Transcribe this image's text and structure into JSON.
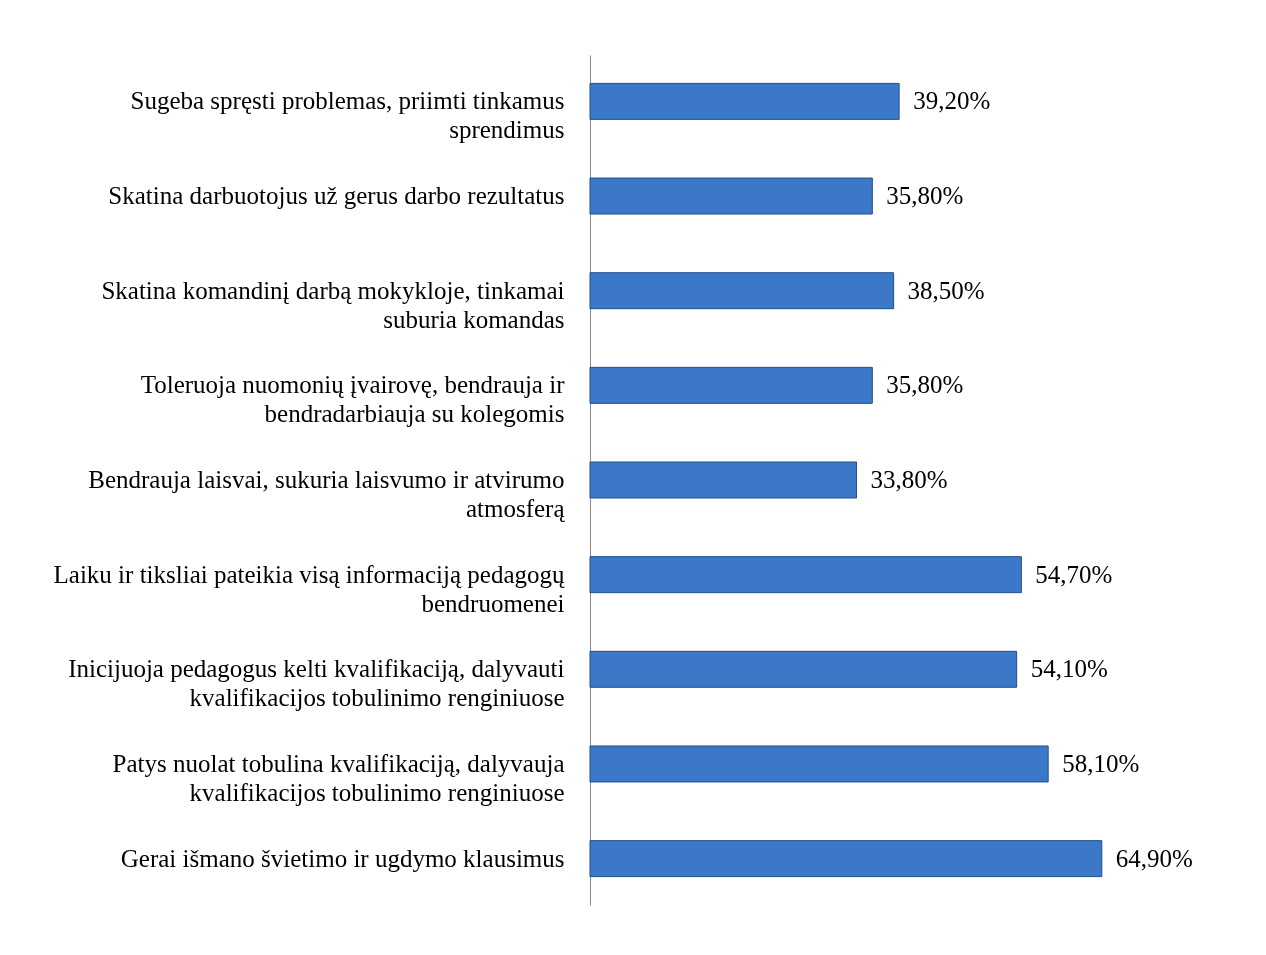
{
  "chart_data": {
    "type": "bar",
    "orientation": "horizontal",
    "categories": [
      "Sugeba spręsti problemas, priimti tinkamus sprendimus",
      "Skatina darbuotojus už gerus darbo rezultatus",
      "Skatina komandinį darbą mokykloje, tinkamai suburia komandas",
      "Toleruoja nuomonių įvairovę, bendrauja ir bendradarbiauja su kolegomis",
      "Bendrauja laisvai, sukuria laisvumo ir atvirumo atmosferą",
      "Laiku ir tiksliai pateikia visą informaciją pedagogų bendruomenei",
      "Inicijuoja pedagogus kelti kvalifikaciją, dalyvauti kvalifikacijos tobulinimo renginiuose",
      "Patys nuolat tobulina kvalifikaciją, dalyvauja kvalifikacijos tobulinimo renginiuose",
      "Gerai išmano švietimo ir ugdymo klausimus"
    ],
    "values": [
      39.2,
      35.8,
      38.5,
      35.8,
      33.8,
      54.7,
      54.1,
      58.1,
      64.9
    ],
    "value_labels": [
      "39,20%",
      "35,80%",
      "38,50%",
      "35,80%",
      "33,80%",
      "54,70%",
      "54,10%",
      "58,10%",
      "64,90%"
    ],
    "color": "#3b79c8",
    "grid": false,
    "legend": false
  }
}
